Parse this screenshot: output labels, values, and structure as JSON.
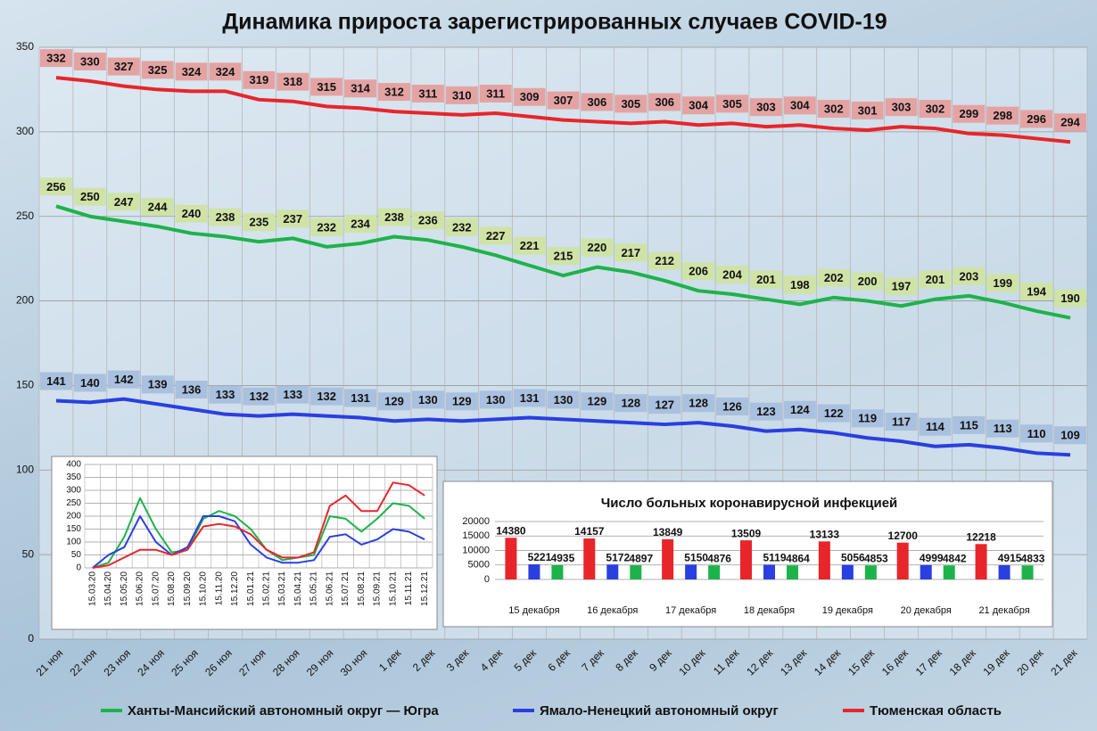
{
  "chart_data": [
    {
      "type": "line",
      "title": "Динамика прироста зарегистрированных случаев COVID-19",
      "categories": [
        "21 ноя",
        "22 ноя",
        "23 ноя",
        "24 ноя",
        "25 ноя",
        "26 ноя",
        "27 ноя",
        "28 ноя",
        "29 ноя",
        "30 ноя",
        "1 дек",
        "2 дек",
        "3 дек",
        "4 дек",
        "5 дек",
        "6 дек",
        "7 дек",
        "8 дек",
        "9 дек",
        "10 дек",
        "11 дек",
        "12 дек",
        "13 дек",
        "14 дек",
        "15 дек",
        "16 дек",
        "17 дек",
        "18 дек",
        "19 дек",
        "20 дек",
        "21 дек"
      ],
      "series": [
        {
          "name": "Ханты-Мансийский автономный округ — Югра",
          "color": "#1db34a",
          "values": [
            256,
            250,
            247,
            244,
            240,
            238,
            235,
            237,
            232,
            234,
            238,
            236,
            232,
            227,
            221,
            215,
            220,
            217,
            212,
            206,
            204,
            201,
            198,
            202,
            200,
            197,
            201,
            203,
            199,
            194,
            190
          ]
        },
        {
          "name": "Ямало-Ненецкий автономный округ",
          "color": "#2a3fe0",
          "values": [
            141,
            140,
            142,
            139,
            136,
            133,
            132,
            133,
            132,
            131,
            129,
            130,
            129,
            130,
            131,
            130,
            129,
            128,
            127,
            128,
            126,
            123,
            124,
            122,
            119,
            117,
            114,
            115,
            113,
            110,
            109
          ]
        },
        {
          "name": "Тюменская область",
          "color": "#e8252a",
          "values": [
            332,
            330,
            327,
            325,
            324,
            324,
            319,
            318,
            315,
            314,
            312,
            311,
            310,
            311,
            309,
            307,
            306,
            305,
            306,
            304,
            305,
            303,
            304,
            302,
            301,
            303,
            302,
            299,
            298,
            296,
            294
          ]
        }
      ],
      "ylim": [
        0,
        350
      ],
      "yticks": [
        0,
        50,
        100,
        150,
        200,
        250,
        300,
        350
      ],
      "grid": true
    },
    {
      "type": "line",
      "categories": [
        "15.03.20",
        "15.04.20",
        "15.05.20",
        "15.06.20",
        "15.07.20",
        "15.08.20",
        "15.09.20",
        "15.10.20",
        "15.11.20",
        "15.12.20",
        "15.01.21",
        "15.02.21",
        "15.03.21",
        "15.04.21",
        "15.05.21",
        "15.06.21",
        "15.07.21",
        "15.08.21",
        "15.09.21",
        "15.10.21",
        "15.11.21",
        "15.12.21"
      ],
      "series": [
        {
          "color": "#1db34a",
          "values": [
            0,
            20,
            120,
            270,
            150,
            60,
            70,
            190,
            220,
            200,
            150,
            70,
            30,
            40,
            50,
            200,
            190,
            140,
            190,
            250,
            240,
            190
          ]
        },
        {
          "color": "#2a3fe0",
          "values": [
            0,
            50,
            80,
            200,
            100,
            50,
            80,
            200,
            200,
            180,
            90,
            40,
            20,
            20,
            30,
            120,
            130,
            90,
            110,
            150,
            140,
            110
          ]
        },
        {
          "color": "#e8252a",
          "values": [
            0,
            10,
            40,
            70,
            70,
            50,
            70,
            160,
            170,
            160,
            130,
            70,
            40,
            40,
            60,
            240,
            280,
            220,
            220,
            330,
            320,
            280
          ]
        }
      ],
      "ylim": [
        0,
        400
      ],
      "yticks": [
        0,
        50,
        100,
        150,
        200,
        250,
        300,
        350,
        400
      ],
      "grid": true
    },
    {
      "type": "bar",
      "title": "Число больных коронавирусной  инфекцией",
      "categories": [
        "15 декабря",
        "16 декабря",
        "17 декабря",
        "18 декабря",
        "19 декабря",
        "20 декабря",
        "21 декабря"
      ],
      "series": [
        {
          "color": "#e8252a",
          "values": [
            14380,
            14157,
            13849,
            13509,
            13133,
            12700,
            12218
          ]
        },
        {
          "color": "#2a3fe0",
          "values": [
            5221,
            5172,
            5150,
            5119,
            5056,
            4999,
            4915
          ]
        },
        {
          "color": "#1db34a",
          "values": [
            4935,
            4897,
            4876,
            4864,
            4853,
            4842,
            4833
          ]
        }
      ],
      "ylim": [
        0,
        20000
      ],
      "yticks": [
        0,
        5000,
        10000,
        15000,
        20000
      ],
      "grid": true
    }
  ]
}
